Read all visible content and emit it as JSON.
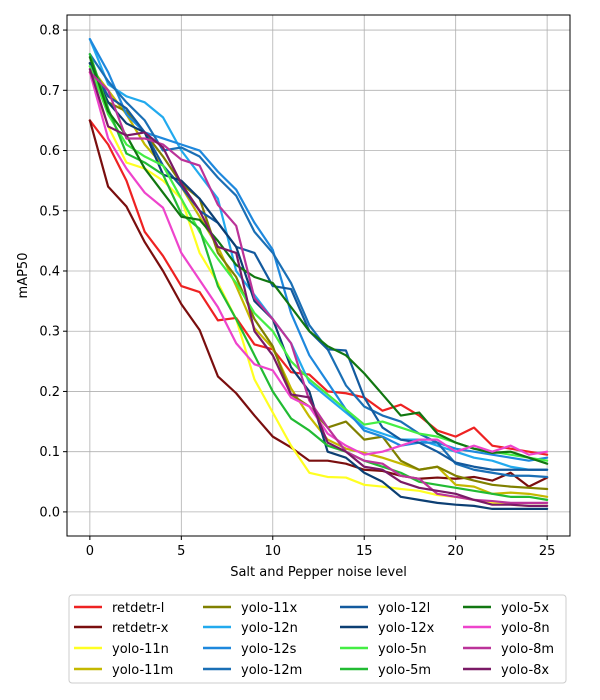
{
  "chart_data": {
    "type": "line",
    "title": "",
    "xlabel": "Salt and Pepper noise level",
    "ylabel": "mAP50",
    "xlim": [
      -1.25,
      26.25
    ],
    "ylim": [
      -0.04,
      0.825
    ],
    "xticks": [
      0,
      5,
      10,
      15,
      20,
      25
    ],
    "yticks": [
      0.0,
      0.1,
      0.2,
      0.3,
      0.4,
      0.5,
      0.6,
      0.7,
      0.8
    ],
    "xtick_labels": [
      "0",
      "5",
      "10",
      "15",
      "20",
      "25"
    ],
    "ytick_labels": [
      "0.0",
      "0.1",
      "0.2",
      "0.3",
      "0.4",
      "0.5",
      "0.6",
      "0.7",
      "0.8"
    ],
    "grid": true,
    "legend": "bottom-center, 4 columns",
    "x": [
      0,
      1,
      2,
      3,
      4,
      5,
      6,
      7,
      8,
      9,
      10,
      11,
      12,
      13,
      14,
      15,
      16,
      17,
      18,
      19,
      20,
      21,
      22,
      23,
      24,
      25
    ],
    "series": [
      {
        "name": "retdetr-l",
        "color": "#ee2222",
        "values": [
          0.65,
          0.61,
          0.55,
          0.465,
          0.425,
          0.375,
          0.365,
          0.318,
          0.322,
          0.278,
          0.27,
          0.232,
          0.228,
          0.2,
          0.197,
          0.19,
          0.168,
          0.178,
          0.16,
          0.135,
          0.125,
          0.14,
          0.11,
          0.105,
          0.1,
          0.095
        ]
      },
      {
        "name": "retdetr-x",
        "color": "#7a0e0e",
        "values": [
          0.65,
          0.54,
          0.507,
          0.448,
          0.4,
          0.345,
          0.302,
          0.225,
          0.197,
          0.16,
          0.125,
          0.107,
          0.085,
          0.085,
          0.08,
          0.07,
          0.068,
          0.06,
          0.055,
          0.057,
          0.055,
          0.058,
          0.052,
          0.065,
          0.042,
          0.057
        ]
      },
      {
        "name": "yolo-11n",
        "color": "#ffff22",
        "values": [
          0.73,
          0.64,
          0.58,
          0.57,
          0.55,
          0.52,
          0.43,
          0.38,
          0.32,
          0.22,
          0.165,
          0.11,
          0.065,
          0.058,
          0.057,
          0.045,
          0.042,
          0.038,
          0.035,
          0.028,
          0.025,
          0.02,
          0.015,
          0.012,
          0.01,
          0.01
        ]
      },
      {
        "name": "yolo-11m",
        "color": "#c4b800",
        "values": [
          0.74,
          0.7,
          0.66,
          0.61,
          0.575,
          0.54,
          0.49,
          0.44,
          0.375,
          0.305,
          0.272,
          0.205,
          0.158,
          0.12,
          0.105,
          0.098,
          0.09,
          0.08,
          0.07,
          0.075,
          0.045,
          0.042,
          0.03,
          0.032,
          0.03,
          0.025
        ]
      },
      {
        "name": "yolo-11x",
        "color": "#808000",
        "values": [
          0.745,
          0.68,
          0.665,
          0.63,
          0.59,
          0.545,
          0.52,
          0.43,
          0.39,
          0.32,
          0.275,
          0.195,
          0.175,
          0.14,
          0.15,
          0.12,
          0.125,
          0.085,
          0.07,
          0.075,
          0.06,
          0.052,
          0.045,
          0.042,
          0.04,
          0.038
        ]
      },
      {
        "name": "yolo-12n",
        "color": "#22aaee",
        "values": [
          0.785,
          0.71,
          0.69,
          0.68,
          0.655,
          0.6,
          0.56,
          0.52,
          0.4,
          0.36,
          0.32,
          0.28,
          0.215,
          0.19,
          0.165,
          0.14,
          0.13,
          0.12,
          0.12,
          0.11,
          0.1,
          0.09,
          0.085,
          0.075,
          0.07,
          0.07
        ]
      },
      {
        "name": "yolo-12s",
        "color": "#1e88dd",
        "values": [
          0.785,
          0.73,
          0.66,
          0.63,
          0.62,
          0.61,
          0.6,
          0.565,
          0.535,
          0.48,
          0.435,
          0.33,
          0.26,
          0.215,
          0.17,
          0.135,
          0.125,
          0.11,
          0.115,
          0.115,
          0.105,
          0.1,
          0.095,
          0.09,
          0.085,
          0.09
        ]
      },
      {
        "name": "yolo-12m",
        "color": "#1a6fb5",
        "values": [
          0.76,
          0.715,
          0.68,
          0.65,
          0.6,
          0.605,
          0.59,
          0.555,
          0.525,
          0.465,
          0.43,
          0.38,
          0.31,
          0.27,
          0.21,
          0.175,
          0.16,
          0.15,
          0.13,
          0.115,
          0.08,
          0.07,
          0.065,
          0.06,
          0.06,
          0.058
        ]
      },
      {
        "name": "yolo-12l",
        "color": "#135a9e",
        "values": [
          0.745,
          0.69,
          0.67,
          0.63,
          0.575,
          0.54,
          0.5,
          0.48,
          0.44,
          0.43,
          0.375,
          0.37,
          0.3,
          0.27,
          0.268,
          0.19,
          0.14,
          0.12,
          0.115,
          0.1,
          0.082,
          0.075,
          0.07,
          0.07,
          0.07,
          0.07
        ]
      },
      {
        "name": "yolo-12x",
        "color": "#0c3f73",
        "values": [
          0.745,
          0.68,
          0.645,
          0.63,
          0.56,
          0.55,
          0.52,
          0.48,
          0.44,
          0.35,
          0.32,
          0.24,
          0.2,
          0.1,
          0.09,
          0.065,
          0.05,
          0.025,
          0.02,
          0.015,
          0.012,
          0.01,
          0.005,
          0.005,
          0.005,
          0.005
        ]
      },
      {
        "name": "yolo-5n",
        "color": "#44ee44",
        "values": [
          0.74,
          0.66,
          0.61,
          0.59,
          0.575,
          0.52,
          0.465,
          0.42,
          0.38,
          0.33,
          0.3,
          0.25,
          0.22,
          0.195,
          0.17,
          0.145,
          0.15,
          0.14,
          0.13,
          0.125,
          0.115,
          0.105,
          0.1,
          0.095,
          0.09,
          0.085
        ]
      },
      {
        "name": "yolo-5m",
        "color": "#22bb33",
        "values": [
          0.76,
          0.67,
          0.595,
          0.58,
          0.56,
          0.495,
          0.47,
          0.375,
          0.32,
          0.26,
          0.2,
          0.155,
          0.135,
          0.11,
          0.1,
          0.085,
          0.075,
          0.065,
          0.05,
          0.045,
          0.04,
          0.035,
          0.03,
          0.025,
          0.025,
          0.02
        ]
      },
      {
        "name": "yolo-5x",
        "color": "#117711",
        "values": [
          0.755,
          0.665,
          0.625,
          0.57,
          0.53,
          0.49,
          0.485,
          0.45,
          0.41,
          0.39,
          0.38,
          0.34,
          0.3,
          0.275,
          0.26,
          0.23,
          0.195,
          0.16,
          0.165,
          0.13,
          0.115,
          0.105,
          0.098,
          0.1,
          0.09,
          0.08
        ]
      },
      {
        "name": "yolo-8n",
        "color": "#ee44cc",
        "values": [
          0.73,
          0.62,
          0.57,
          0.53,
          0.505,
          0.43,
          0.385,
          0.34,
          0.28,
          0.245,
          0.235,
          0.19,
          0.175,
          0.13,
          0.11,
          0.095,
          0.1,
          0.11,
          0.12,
          0.12,
          0.1,
          0.11,
          0.1,
          0.11,
          0.095,
          0.1
        ]
      },
      {
        "name": "yolo-8m",
        "color": "#bb3399",
        "values": [
          0.73,
          0.7,
          0.62,
          0.62,
          0.61,
          0.585,
          0.575,
          0.51,
          0.475,
          0.355,
          0.32,
          0.28,
          0.185,
          0.14,
          0.1,
          0.085,
          0.08,
          0.06,
          0.055,
          0.03,
          0.025,
          0.02,
          0.018,
          0.015,
          0.015,
          0.015
        ]
      },
      {
        "name": "yolo-8x",
        "color": "#7a1a66",
        "values": [
          0.735,
          0.64,
          0.625,
          0.63,
          0.605,
          0.545,
          0.5,
          0.44,
          0.43,
          0.3,
          0.26,
          0.195,
          0.19,
          0.115,
          0.1,
          0.075,
          0.07,
          0.05,
          0.04,
          0.035,
          0.03,
          0.02,
          0.012,
          0.012,
          0.01,
          0.01
        ]
      }
    ]
  }
}
